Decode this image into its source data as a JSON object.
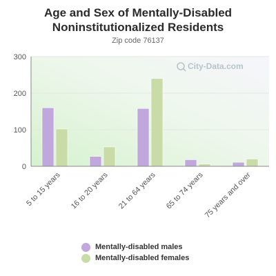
{
  "chart_data": {
    "type": "bar",
    "title": "Age and Sex of Mentally-Disabled Noninstitutionalized Residents",
    "subtitle": "Zip code 76137",
    "categories": [
      "5 to 15 years",
      "16 to 20 years",
      "21 to 64 years",
      "65 to 74 years",
      "75 years and over"
    ],
    "series": [
      {
        "name": "Mentally-disabled males",
        "color": "#c0a8dc",
        "values": [
          160,
          27,
          158,
          18,
          11
        ]
      },
      {
        "name": "Mentally-disabled females",
        "color": "#c9dca8",
        "values": [
          102,
          53,
          240,
          6,
          20
        ]
      }
    ],
    "yticks": [
      0,
      100,
      200,
      300
    ],
    "ylim": [
      0,
      300
    ],
    "grid": true,
    "legend_position": "bottom",
    "watermark": "City-Data.com"
  }
}
